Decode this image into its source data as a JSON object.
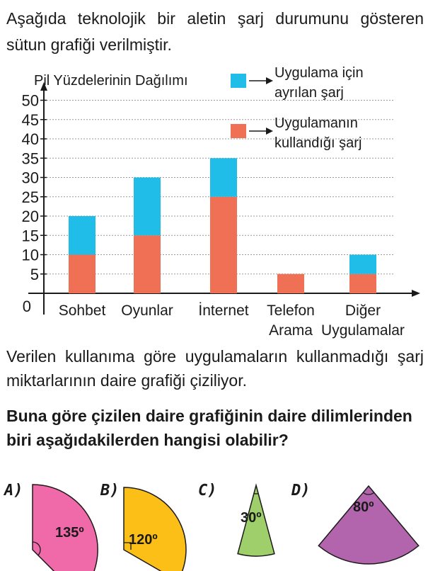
{
  "intro_text": "Aşağıda teknolojik bir aletin şarj durumunu gösteren sütun grafiği verilmiştir.",
  "chart_data": {
    "type": "bar",
    "stacked": true,
    "title": "Pil Yüzdelerinin Dağılımı",
    "categories": [
      [
        "Sohbet"
      ],
      [
        "Oyunlar"
      ],
      [
        "İnternet"
      ],
      [
        "Telefon",
        "Arama"
      ],
      [
        "Diğer",
        "Uygulamalar"
      ]
    ],
    "series": [
      {
        "name": "Uygulamanın kullandığı şarj",
        "values": [
          10,
          15,
          25,
          5,
          5
        ],
        "color": "#f07055"
      },
      {
        "name": "Uygulama için ayrılan şarj",
        "values": [
          10,
          15,
          10,
          0,
          5
        ],
        "color": "#1fbde8"
      }
    ],
    "legend": [
      {
        "lines": [
          "Uygulama için",
          "ayrılan şarj"
        ],
        "color": "#1fbde8"
      },
      {
        "lines": [
          "Uygulamanın",
          "kullandığı şarj"
        ],
        "color": "#f07055"
      }
    ],
    "yticks": [
      0,
      5,
      10,
      15,
      20,
      25,
      30,
      35,
      40,
      45,
      50
    ],
    "ylim": [
      0,
      50
    ],
    "grid": true,
    "legend_position": "top-right"
  },
  "paragraph_text": "Verilen kullanıma göre uygulamaların kullanmadığı şarj miktarlarının daire grafiği çiziliyor.",
  "question_text": "Buna göre çizilen daire grafiğinin daire dilimlerinden biri aşağıdakilerden hangisi olabilir?",
  "options": [
    {
      "label": "A)",
      "angle": 135,
      "angle_text": "135º",
      "color": "#f06aaa"
    },
    {
      "label": "B)",
      "angle": 120,
      "angle_text": "120º",
      "color": "#fbbf17"
    },
    {
      "label": "C)",
      "angle": 30,
      "angle_text": "30º",
      "color": "#9fcf6a"
    },
    {
      "label": "D)",
      "angle": 80,
      "angle_text": "80º",
      "color": "#b264ad"
    }
  ]
}
